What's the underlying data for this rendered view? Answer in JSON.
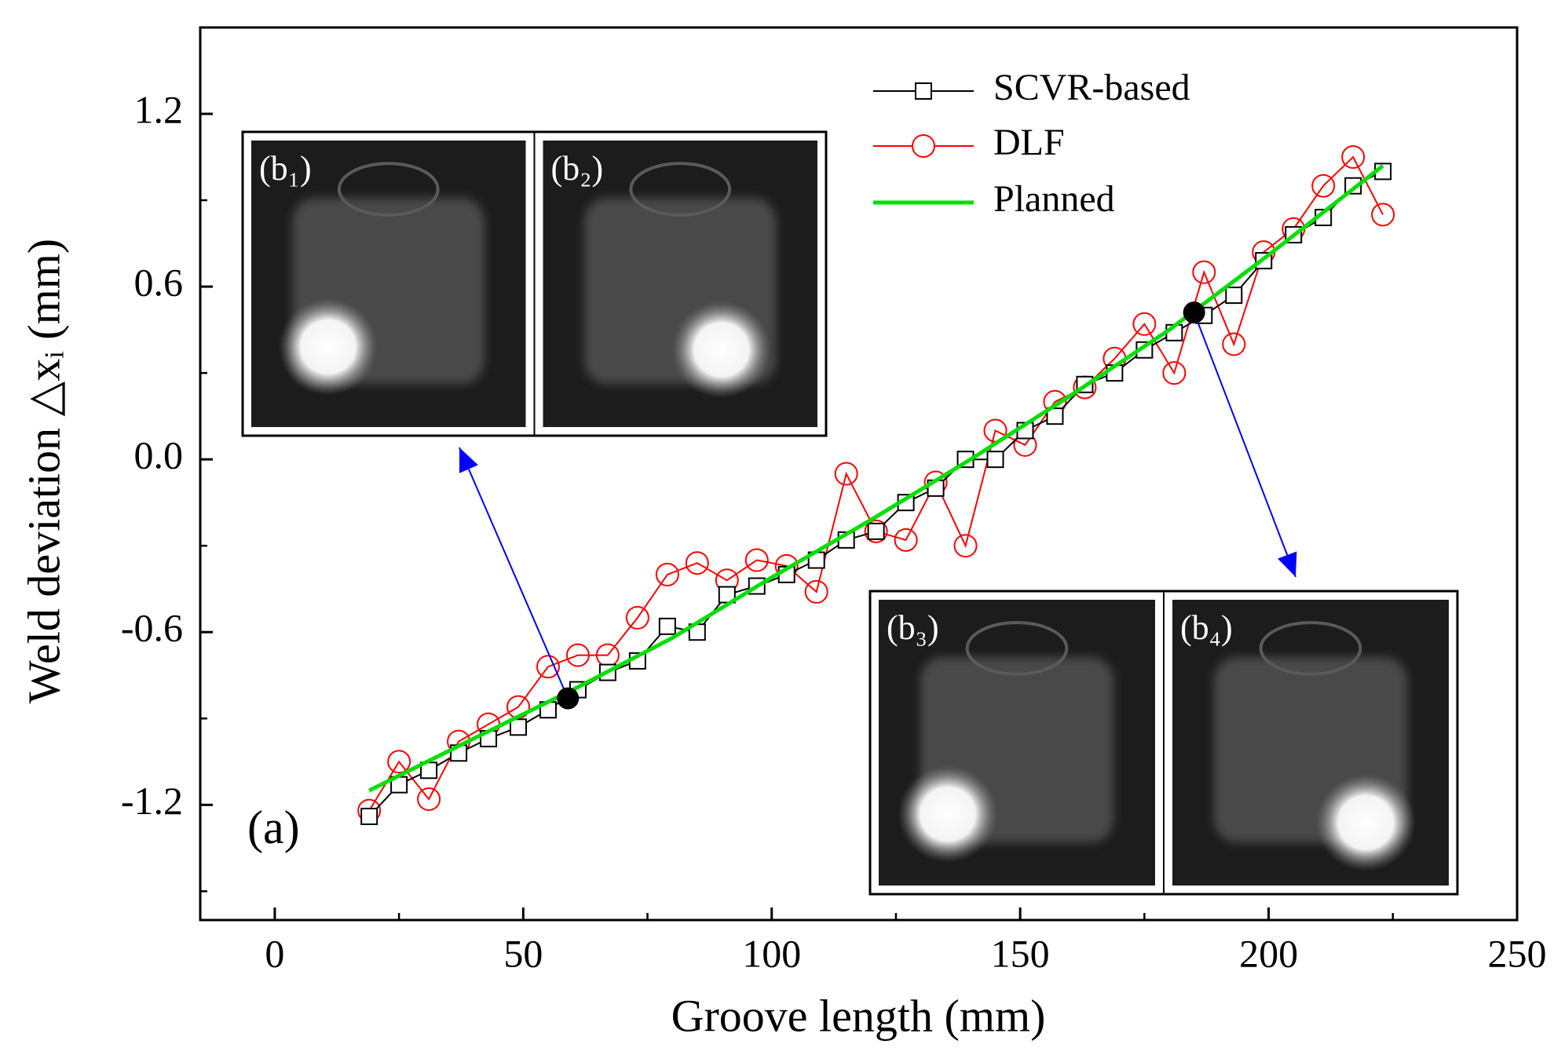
{
  "chart_data": {
    "type": "scatter-line",
    "x_label": "Groove length (mm)",
    "y_label": "Weld deviation △xᵢ (mm)",
    "annotation": "(a)",
    "inset_labels": [
      "(b₁)",
      "(b₂)",
      "(b₃)",
      "(b₄)"
    ],
    "xlim": [
      -15,
      250
    ],
    "ylim": [
      -1.6,
      1.5
    ],
    "xticks": [
      0,
      50,
      100,
      150,
      200,
      250
    ],
    "xticks_minor": [
      25,
      75,
      125,
      175,
      225
    ],
    "yticks": [
      {
        "value": -1.2,
        "label": "-1.2"
      },
      {
        "value": -0.6,
        "label": "-0.6"
      },
      {
        "value": 0,
        "label": "0.0"
      },
      {
        "value": 0.6,
        "label": "0.6"
      },
      {
        "value": 1.2,
        "label": "1.2"
      }
    ],
    "yticks_minor": [
      -1.5,
      -0.9,
      -0.3,
      0.3,
      0.9
    ],
    "legend_position": "upper right",
    "series": [
      {
        "name": "SCVR-based",
        "color": "#000000",
        "marker": "square",
        "x": [
          19,
          25,
          31,
          37,
          43,
          49,
          55,
          61,
          67,
          73,
          79,
          85,
          91,
          97,
          103,
          109,
          115,
          121,
          127,
          133,
          139,
          145,
          151,
          157,
          163,
          169,
          175,
          181,
          187,
          193,
          199,
          205,
          211,
          217,
          223
        ],
        "values": [
          -1.24,
          -1.13,
          -1.08,
          -1.02,
          -0.97,
          -0.93,
          -0.87,
          -0.8,
          -0.74,
          -0.7,
          -0.58,
          -0.6,
          -0.47,
          -0.44,
          -0.4,
          -0.35,
          -0.28,
          -0.25,
          -0.15,
          -0.1,
          0,
          0,
          0.1,
          0.15,
          0.26,
          0.3,
          0.38,
          0.44,
          0.5,
          0.57,
          0.69,
          0.78,
          0.84,
          0.95,
          1
        ]
      },
      {
        "name": "DLF",
        "color": "#ff0000",
        "marker": "circle",
        "x": [
          19,
          25,
          31,
          37,
          43,
          49,
          55,
          61,
          67,
          73,
          79,
          85,
          91,
          97,
          103,
          109,
          115,
          121,
          127,
          133,
          139,
          145,
          151,
          157,
          163,
          169,
          175,
          181,
          187,
          193,
          199,
          205,
          211,
          217,
          223
        ],
        "values": [
          -1.22,
          -1.05,
          -1.18,
          -0.98,
          -0.92,
          -0.86,
          -0.72,
          -0.68,
          -0.68,
          -0.55,
          -0.4,
          -0.36,
          -0.42,
          -0.35,
          -0.37,
          -0.46,
          -0.05,
          -0.25,
          -0.28,
          -0.08,
          -0.3,
          0.1,
          0.05,
          0.2,
          0.25,
          0.35,
          0.47,
          0.3,
          0.65,
          0.4,
          0.72,
          0.8,
          0.95,
          1.05,
          0.85
        ]
      },
      {
        "name": "Planned",
        "color": "#00e000",
        "marker": "none",
        "x": [
          19,
          40,
          60,
          80,
          100,
          120,
          140,
          160,
          180,
          200,
          223
        ],
        "values": [
          -1.15,
          -0.97,
          -0.8,
          -0.62,
          -0.41,
          -0.21,
          0,
          0.22,
          0.45,
          0.71,
          1.02
        ]
      }
    ],
    "highlight_points": {
      "x": [
        59,
        185
      ],
      "values": [
        -0.83,
        0.51
      ]
    }
  }
}
